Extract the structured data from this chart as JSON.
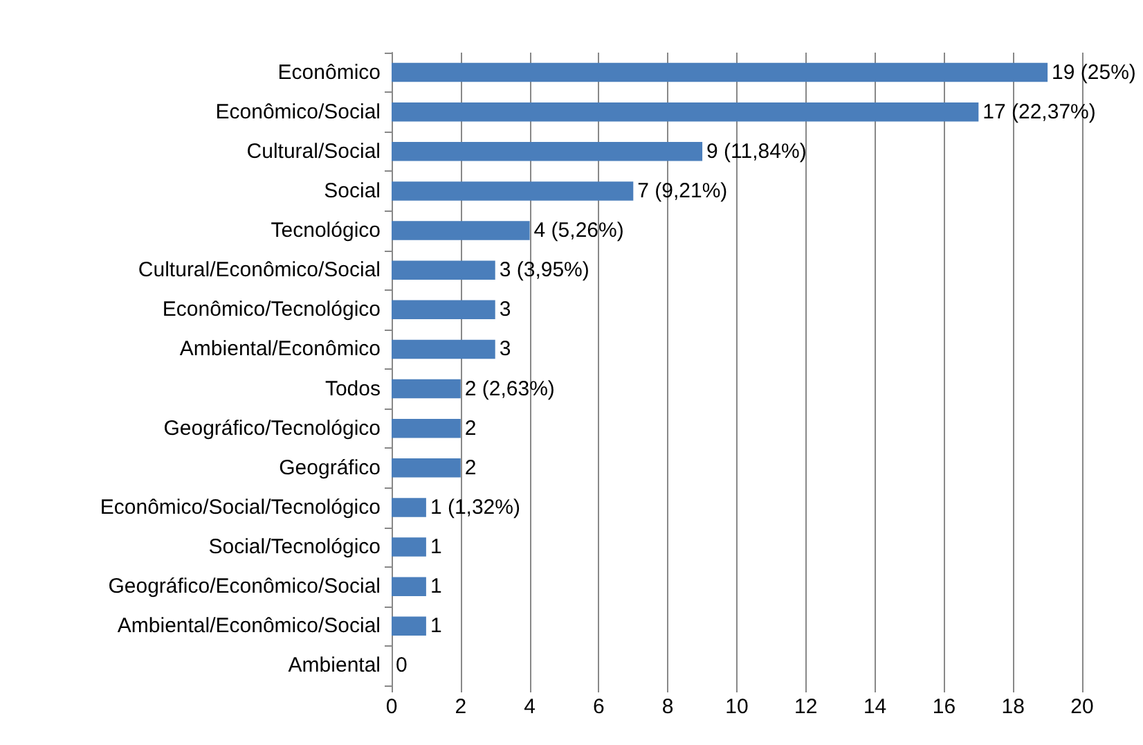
{
  "chart_data": {
    "type": "bar",
    "orientation": "horizontal",
    "categories": [
      "Econômico",
      "Econômico/Social",
      "Cultural/Social",
      "Social",
      "Tecnológico",
      "Cultural/Econômico/Social",
      "Econômico/Tecnológico",
      "Ambiental/Econômico",
      "Todos",
      "Geográfico/Tecnológico",
      "Geográfico",
      "Econômico/Social/Tecnológico",
      "Social/Tecnológico",
      "Geográfico/Econômico/Social",
      "Ambiental/Econômico/Social",
      "Ambiental"
    ],
    "values": [
      19,
      17,
      9,
      7,
      4,
      3,
      3,
      3,
      2,
      2,
      2,
      1,
      1,
      1,
      1,
      0
    ],
    "value_labels": [
      "19 (25%)",
      "17 (22,37%)",
      "9 (11,84%)",
      "7 (9,21%)",
      "4 (5,26%)",
      "3 (3,95%)",
      "3",
      "3",
      "2 (2,63%)",
      "2",
      "2",
      "1 (1,32%)",
      "1",
      "1",
      "1",
      "0"
    ],
    "color": "#4a7ebb",
    "xlim": [
      0,
      20
    ],
    "xticks": [
      0,
      2,
      4,
      6,
      8,
      10,
      12,
      14,
      16,
      18,
      20
    ],
    "grid": "x"
  }
}
